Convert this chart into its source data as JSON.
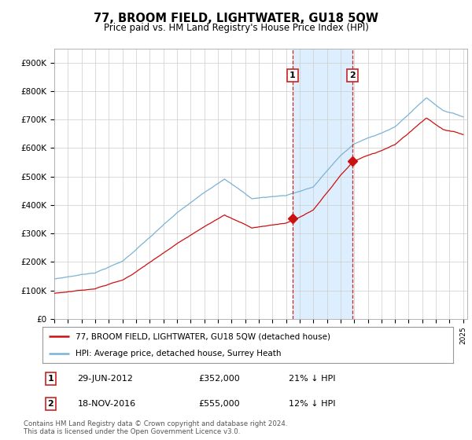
{
  "title": "77, BROOM FIELD, LIGHTWATER, GU18 5QW",
  "subtitle": "Price paid vs. HM Land Registry's House Price Index (HPI)",
  "ylabel_ticks": [
    "£0",
    "£100K",
    "£200K",
    "£300K",
    "£400K",
    "£500K",
    "£600K",
    "£700K",
    "£800K",
    "£900K"
  ],
  "ytick_values": [
    0,
    100000,
    200000,
    300000,
    400000,
    500000,
    600000,
    700000,
    800000,
    900000
  ],
  "ylim": [
    0,
    950000
  ],
  "xlim_start": 1995.0,
  "xlim_end": 2025.3,
  "hpi_color": "#7ab3d4",
  "price_color": "#cc1111",
  "sale1_date": 2012.49,
  "sale1_price": 352000,
  "sale2_date": 2016.88,
  "sale2_price": 555000,
  "shade_color": "#ddeeff",
  "legend_entries": [
    "77, BROOM FIELD, LIGHTWATER, GU18 5QW (detached house)",
    "HPI: Average price, detached house, Surrey Heath"
  ],
  "table_rows": [
    {
      "num": "1",
      "date": "29-JUN-2012",
      "price": "£352,000",
      "hpi": "21% ↓ HPI"
    },
    {
      "num": "2",
      "date": "18-NOV-2016",
      "price": "£555,000",
      "hpi": "12% ↓ HPI"
    }
  ],
  "footnote": "Contains HM Land Registry data © Crown copyright and database right 2024.\nThis data is licensed under the Open Government Licence v3.0.",
  "background_color": "#ffffff",
  "grid_color": "#cccccc"
}
